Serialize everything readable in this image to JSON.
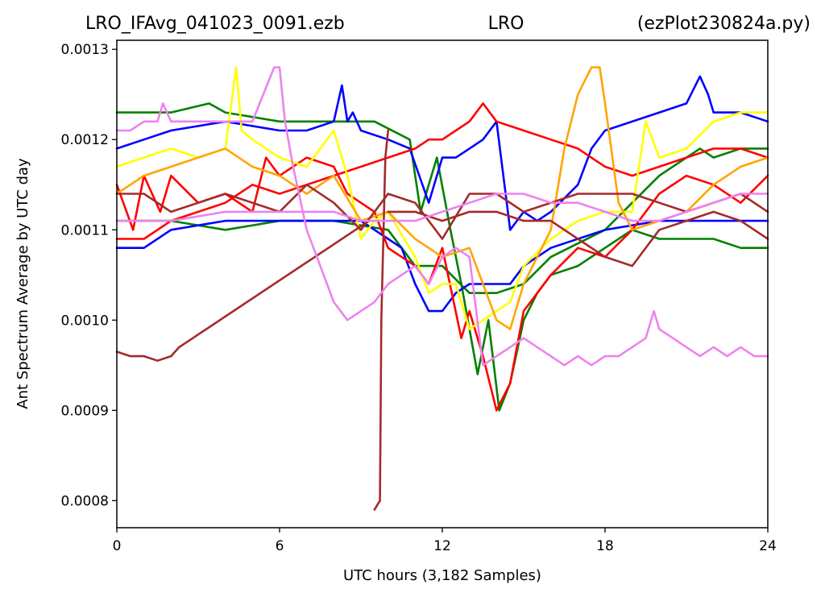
{
  "chart_data": {
    "type": "line",
    "title_left": "LRO_IFAvg_041023_0091.ezb",
    "title_center": "LRO",
    "title_right": "(ezPlot230824a.py)",
    "xlabel": "UTC hours  (3,182 Samples)",
    "ylabel": "Ant Spectrum Average by UTC day",
    "xlim": [
      0,
      24
    ],
    "ylim": [
      0.00077,
      0.00131
    ],
    "x_ticks": [
      0,
      6,
      12,
      18,
      24
    ],
    "x_tick_labels": [
      "0",
      "6",
      "12",
      "18",
      "24"
    ],
    "y_ticks": [
      0.0008,
      0.0009,
      0.001,
      0.0011,
      0.0012,
      0.0013
    ],
    "y_tick_labels": [
      "0.0008",
      "0.0009",
      "0.0010",
      "0.0011",
      "0.0012",
      "0.0013"
    ],
    "grid": false,
    "series": [
      {
        "color": "#008000",
        "x": [
          0,
          2,
          3.4,
          4,
          6,
          8,
          9.5,
          10.8,
          11.2,
          11.8,
          12.3,
          12.7,
          13.3,
          13.7,
          14.1,
          14.5,
          15,
          15.5,
          16,
          17,
          18,
          19,
          20,
          21,
          22,
          23,
          24
        ],
        "y": [
          0.00123,
          0.00123,
          0.00124,
          0.00123,
          0.00122,
          0.00122,
          0.00122,
          0.0012,
          0.00112,
          0.00118,
          0.0011,
          0.00104,
          0.00094,
          0.001,
          0.0009,
          0.00093,
          0.001,
          0.00103,
          0.00105,
          0.00106,
          0.00108,
          0.0011,
          0.00109,
          0.00109,
          0.00109,
          0.00108,
          0.00108
        ]
      },
      {
        "color": "#008000",
        "x": [
          0,
          2,
          4,
          6,
          8,
          10,
          11,
          12,
          13,
          14,
          15,
          16,
          18,
          20,
          21.5,
          22,
          23,
          24
        ],
        "y": [
          0.00111,
          0.00111,
          0.0011,
          0.00111,
          0.00111,
          0.0011,
          0.00106,
          0.00106,
          0.00103,
          0.00103,
          0.00104,
          0.00107,
          0.0011,
          0.00116,
          0.00119,
          0.00118,
          0.00119,
          0.00119
        ]
      },
      {
        "color": "#0000ff",
        "x": [
          0,
          1,
          2,
          4,
          6,
          7,
          8,
          8.3,
          8.5,
          8.7,
          9,
          10,
          10.8,
          11.5,
          12,
          12.5,
          13,
          13.5,
          14,
          14.5,
          15,
          15.5,
          16,
          17,
          17.5,
          18,
          20,
          21,
          21.5,
          21.8,
          22,
          23,
          24
        ],
        "y": [
          0.00119,
          0.0012,
          0.00121,
          0.00122,
          0.00121,
          0.00121,
          0.00122,
          0.00126,
          0.00122,
          0.00123,
          0.00121,
          0.0012,
          0.00119,
          0.00113,
          0.00118,
          0.00118,
          0.00119,
          0.0012,
          0.00122,
          0.0011,
          0.00112,
          0.00111,
          0.00112,
          0.00115,
          0.00119,
          0.00121,
          0.00123,
          0.00124,
          0.00127,
          0.00125,
          0.00123,
          0.00123,
          0.00122
        ]
      },
      {
        "color": "#0000ff",
        "x": [
          0,
          1,
          2,
          4,
          6,
          8,
          9,
          10,
          10.5,
          11,
          11.5,
          12,
          12.5,
          13,
          13.5,
          14,
          14.5,
          15,
          16,
          18,
          20,
          22,
          23,
          24
        ],
        "y": [
          0.00108,
          0.00108,
          0.0011,
          0.00111,
          0.00111,
          0.00111,
          0.00111,
          0.00109,
          0.00108,
          0.00104,
          0.00101,
          0.00101,
          0.00103,
          0.00104,
          0.00104,
          0.00104,
          0.00104,
          0.00106,
          0.00108,
          0.0011,
          0.00111,
          0.00111,
          0.00111,
          0.00111
        ]
      },
      {
        "color": "#ff0000",
        "x": [
          0,
          0.6,
          1,
          1.6,
          2,
          3,
          4,
          5,
          5.5,
          6,
          7,
          8,
          8.5,
          9,
          9.5,
          10,
          11,
          11.5,
          12,
          12.7,
          13,
          13.5,
          14,
          14.5,
          15,
          16,
          17,
          18,
          19,
          20,
          21,
          22,
          23,
          24
        ],
        "y": [
          0.00115,
          0.0011,
          0.00116,
          0.00112,
          0.00116,
          0.00113,
          0.00114,
          0.00112,
          0.00118,
          0.00116,
          0.00118,
          0.00117,
          0.00114,
          0.00113,
          0.00112,
          0.00108,
          0.00106,
          0.00104,
          0.00108,
          0.00098,
          0.00101,
          0.00096,
          0.0009,
          0.00093,
          0.00101,
          0.00105,
          0.00108,
          0.00107,
          0.0011,
          0.00114,
          0.00116,
          0.00115,
          0.00113,
          0.00116
        ]
      },
      {
        "color": "#ff0000",
        "x": [
          0,
          1,
          2,
          3,
          4,
          5,
          6,
          7,
          8,
          9,
          10,
          11,
          11.5,
          12,
          12.5,
          13,
          13.5,
          14,
          15,
          16,
          17,
          18,
          19,
          20,
          21,
          22,
          23,
          24
        ],
        "y": [
          0.00109,
          0.00109,
          0.00111,
          0.00112,
          0.00113,
          0.00115,
          0.00114,
          0.00115,
          0.00116,
          0.00117,
          0.00118,
          0.00119,
          0.0012,
          0.0012,
          0.00121,
          0.00122,
          0.00124,
          0.00122,
          0.00121,
          0.0012,
          0.00119,
          0.00117,
          0.00116,
          0.00117,
          0.00118,
          0.00119,
          0.00119,
          0.00118
        ]
      },
      {
        "color": "#ffff00",
        "x": [
          0,
          1,
          2,
          3,
          4,
          4.4,
          4.6,
          5,
          6,
          7,
          8,
          8.5,
          9,
          9.5,
          10,
          11,
          11.5,
          12,
          12.5,
          13,
          13.5,
          14,
          14.5,
          15,
          16,
          17,
          18,
          19,
          19.5,
          20,
          21,
          22,
          23,
          24
        ],
        "y": [
          0.00117,
          0.00118,
          0.00119,
          0.00118,
          0.00119,
          0.00128,
          0.00121,
          0.0012,
          0.00118,
          0.00117,
          0.00121,
          0.00116,
          0.00109,
          0.00111,
          0.00112,
          0.00107,
          0.00103,
          0.00104,
          0.00104,
          0.00099,
          0.001,
          0.00101,
          0.00102,
          0.00106,
          0.00109,
          0.00111,
          0.00112,
          0.00112,
          0.00122,
          0.00118,
          0.00119,
          0.00122,
          0.00123,
          0.00123
        ]
      },
      {
        "color": "#ffa500",
        "x": [
          0,
          1,
          2,
          3,
          4,
          5,
          6,
          7,
          8,
          9,
          10,
          11,
          12,
          13,
          13.5,
          14,
          14.5,
          15,
          16,
          16.5,
          17,
          17.5,
          17.8,
          18,
          18.5,
          19,
          20,
          21,
          22,
          23,
          24
        ],
        "y": [
          0.00114,
          0.00116,
          0.00117,
          0.00118,
          0.00119,
          0.00117,
          0.00116,
          0.00114,
          0.00116,
          0.00111,
          0.00112,
          0.00109,
          0.00107,
          0.00108,
          0.00104,
          0.001,
          0.00099,
          0.00104,
          0.0011,
          0.00119,
          0.00125,
          0.00128,
          0.00128,
          0.00124,
          0.00113,
          0.0011,
          0.00111,
          0.00112,
          0.00115,
          0.00117,
          0.00118
        ]
      },
      {
        "color": "#a52a2a",
        "x": [
          0,
          0.5,
          1,
          1.5,
          2,
          2.3
        ],
        "y": [
          0.000965,
          0.00096,
          0.00096,
          0.000955,
          0.00096,
          0.00097
        ]
      },
      {
        "color": "#a52a2a",
        "x": [
          2.3,
          9.3
        ],
        "y": [
          0.00097,
          0.00111
        ]
      },
      {
        "color": "#a52a2a",
        "x": [
          9.5,
          9.7,
          9.75,
          9.9,
          10
        ],
        "y": [
          0.00079,
          0.0008,
          0.001,
          0.00118,
          0.00121
        ]
      },
      {
        "color": "#a52a2a",
        "x": [
          0,
          1,
          2,
          3,
          4,
          5,
          6,
          7,
          8,
          9,
          10,
          11,
          12,
          13,
          14,
          15,
          16,
          17,
          18,
          19,
          20,
          21,
          22,
          23,
          24
        ],
        "y": [
          0.00114,
          0.00114,
          0.00112,
          0.00113,
          0.00114,
          0.00113,
          0.00112,
          0.00115,
          0.00113,
          0.0011,
          0.00114,
          0.00113,
          0.00109,
          0.00114,
          0.00114,
          0.00112,
          0.00113,
          0.00114,
          0.00114,
          0.00114,
          0.00113,
          0.00112,
          0.00113,
          0.00114,
          0.00112
        ]
      },
      {
        "color": "#a52a2a",
        "x": [
          10,
          11,
          12,
          13,
          14,
          15,
          16,
          17,
          18,
          19,
          20,
          21,
          22,
          23,
          24
        ],
        "y": [
          0.00112,
          0.00112,
          0.00111,
          0.00112,
          0.00112,
          0.00111,
          0.00111,
          0.00109,
          0.00107,
          0.00106,
          0.0011,
          0.00111,
          0.00112,
          0.00111,
          0.00109
        ]
      },
      {
        "color": "#ee82ee",
        "x": [
          0,
          0.5,
          1,
          1.5,
          1.7,
          2,
          3,
          4,
          5,
          5.8,
          6,
          6.2,
          6.5,
          7,
          7.5,
          8,
          8.5,
          9,
          9.5,
          10,
          10.5,
          11,
          11.5,
          12,
          12.5,
          13,
          13.5,
          14,
          14.5,
          15,
          15.5,
          16,
          16.5,
          17,
          17.5,
          18,
          18.5,
          19,
          19.5,
          19.8,
          20,
          20.5,
          21,
          21.5,
          22,
          22.5,
          23,
          23.5,
          24
        ],
        "y": [
          0.00121,
          0.00121,
          0.00122,
          0.00122,
          0.00124,
          0.00122,
          0.00122,
          0.00122,
          0.00122,
          0.00128,
          0.00128,
          0.00122,
          0.00117,
          0.0011,
          0.00106,
          0.00102,
          0.001,
          0.00101,
          0.00102,
          0.00104,
          0.00105,
          0.00106,
          0.00104,
          0.00107,
          0.00108,
          0.00107,
          0.00095,
          0.00096,
          0.00097,
          0.00098,
          0.00097,
          0.00096,
          0.00095,
          0.00096,
          0.00095,
          0.00096,
          0.00096,
          0.00097,
          0.00098,
          0.00101,
          0.00099,
          0.00098,
          0.00097,
          0.00096,
          0.00097,
          0.00096,
          0.00097,
          0.00096,
          0.00096
        ]
      },
      {
        "color": "#ee82ee",
        "x": [
          0,
          2,
          4,
          6,
          7,
          8,
          9,
          10,
          11,
          12,
          13,
          14,
          15,
          16,
          17,
          18,
          19,
          20,
          21,
          22,
          23,
          24
        ],
        "y": [
          0.00111,
          0.00111,
          0.00112,
          0.00112,
          0.00112,
          0.00112,
          0.00111,
          0.00111,
          0.00111,
          0.00112,
          0.00113,
          0.00114,
          0.00114,
          0.00113,
          0.00113,
          0.00112,
          0.00111,
          0.00111,
          0.00112,
          0.00113,
          0.00114,
          0.00114
        ]
      }
    ]
  }
}
